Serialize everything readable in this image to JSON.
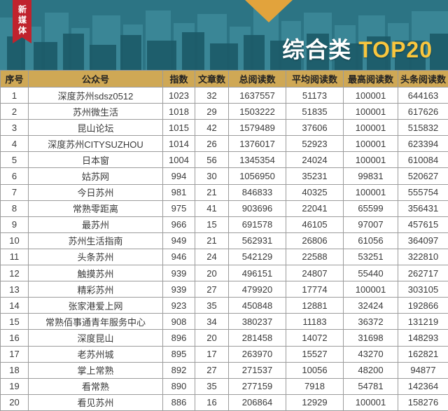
{
  "banner": {
    "ribbon_label": "新媒体",
    "title_main": "综合类",
    "title_highlight": "TOP20"
  },
  "colors": {
    "banner_bg": "#2c7484",
    "ribbon_red": "#c0232d",
    "accent_gold": "#e2a33c",
    "title_highlight": "#f8c63e",
    "table_header_bg": "#cfa855"
  },
  "chart_data": {
    "type": "table",
    "title": "综合类 TOP20",
    "columns": [
      "序号",
      "公众号",
      "指数",
      "文章数",
      "总阅读数",
      "平均阅读数",
      "最高阅读数",
      "头条阅读数"
    ],
    "column_keys": [
      "rank",
      "account",
      "index",
      "articles",
      "total_reads",
      "avg_reads",
      "max_reads",
      "headline_reads"
    ],
    "rows": [
      [
        "1",
        "深度苏州sdsz0512",
        "1023",
        "32",
        "1637557",
        "51173",
        "100001",
        "644163"
      ],
      [
        "2",
        "苏州微生活",
        "1018",
        "29",
        "1503222",
        "51835",
        "100001",
        "617626"
      ],
      [
        "3",
        "昆山论坛",
        "1015",
        "42",
        "1579489",
        "37606",
        "100001",
        "515832"
      ],
      [
        "4",
        "深度苏州CITYSUZHOU",
        "1014",
        "26",
        "1376017",
        "52923",
        "100001",
        "623394"
      ],
      [
        "5",
        "日本窗",
        "1004",
        "56",
        "1345354",
        "24024",
        "100001",
        "610084"
      ],
      [
        "6",
        "姑苏网",
        "994",
        "30",
        "1056950",
        "35231",
        "99831",
        "520627"
      ],
      [
        "7",
        "今日苏州",
        "981",
        "21",
        "846833",
        "40325",
        "100001",
        "555754"
      ],
      [
        "8",
        "常熟零距离",
        "975",
        "41",
        "903696",
        "22041",
        "65599",
        "356431"
      ],
      [
        "9",
        "最苏州",
        "966",
        "15",
        "691578",
        "46105",
        "97007",
        "457615"
      ],
      [
        "10",
        "苏州生活指南",
        "949",
        "21",
        "562931",
        "26806",
        "61056",
        "364097"
      ],
      [
        "11",
        "头条苏州",
        "946",
        "24",
        "542129",
        "22588",
        "53251",
        "322810"
      ],
      [
        "12",
        "触摸苏州",
        "939",
        "20",
        "496151",
        "24807",
        "55440",
        "262717"
      ],
      [
        "13",
        "精彩苏州",
        "939",
        "27",
        "479920",
        "17774",
        "100001",
        "303105"
      ],
      [
        "14",
        "张家港爱上网",
        "923",
        "35",
        "450848",
        "12881",
        "32424",
        "192866"
      ],
      [
        "15",
        "常熟佰事通青年服务中心",
        "908",
        "34",
        "380237",
        "11183",
        "36372",
        "131219"
      ],
      [
        "16",
        "深度昆山",
        "896",
        "20",
        "281458",
        "14072",
        "31698",
        "148293"
      ],
      [
        "17",
        "老苏州城",
        "895",
        "17",
        "263970",
        "15527",
        "43270",
        "162821"
      ],
      [
        "18",
        "掌上常熟",
        "892",
        "27",
        "271537",
        "10056",
        "48200",
        "94877"
      ],
      [
        "19",
        "看常熟",
        "890",
        "35",
        "277159",
        "7918",
        "54781",
        "142364"
      ],
      [
        "20",
        "看见苏州",
        "886",
        "16",
        "206864",
        "12929",
        "100001",
        "158276"
      ]
    ]
  }
}
